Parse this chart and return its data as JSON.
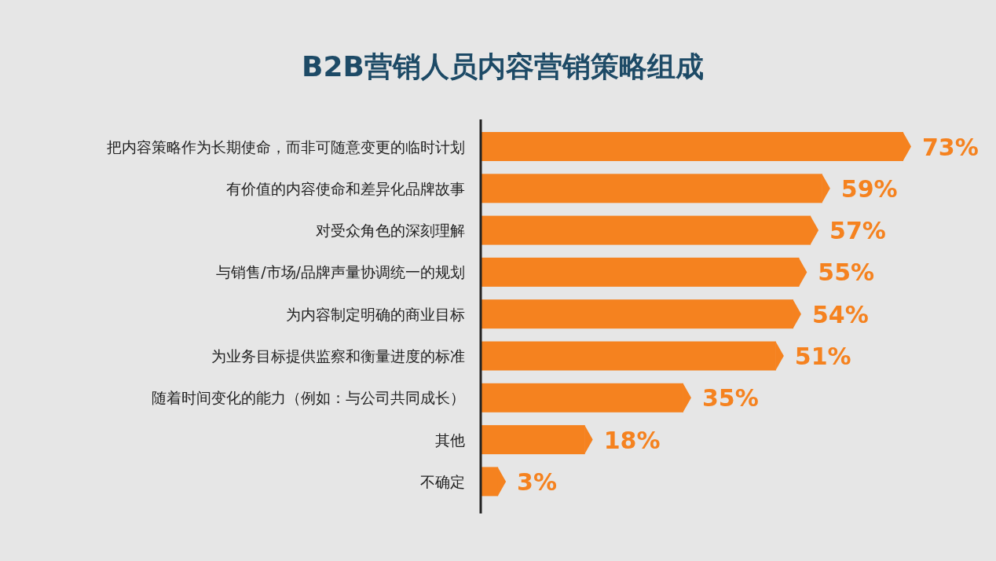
{
  "chart_data": {
    "type": "bar",
    "orientation": "horizontal",
    "title": "B2B营销人员内容营销策略组成",
    "categories": [
      "把内容策略作为长期使命，而非可随意变更的临时计划",
      "有价值的内容使命和差异化品牌故事",
      "对受众角色的深刻理解",
      "与销售/市场/品牌声量协调统一的规划",
      "为内容制定明确的商业目标",
      "为业务目标提供监察和衡量进度的标准",
      "随着时间变化的能力（例如：与公司共同成长）",
      "其他",
      "不确定"
    ],
    "values": [
      73,
      59,
      57,
      55,
      54,
      51,
      35,
      18,
      3
    ],
    "value_labels": [
      "73%",
      "59%",
      "57%",
      "55%",
      "54%",
      "51%",
      "35%",
      "18%",
      "3%"
    ],
    "color": "#f5821f"
  }
}
